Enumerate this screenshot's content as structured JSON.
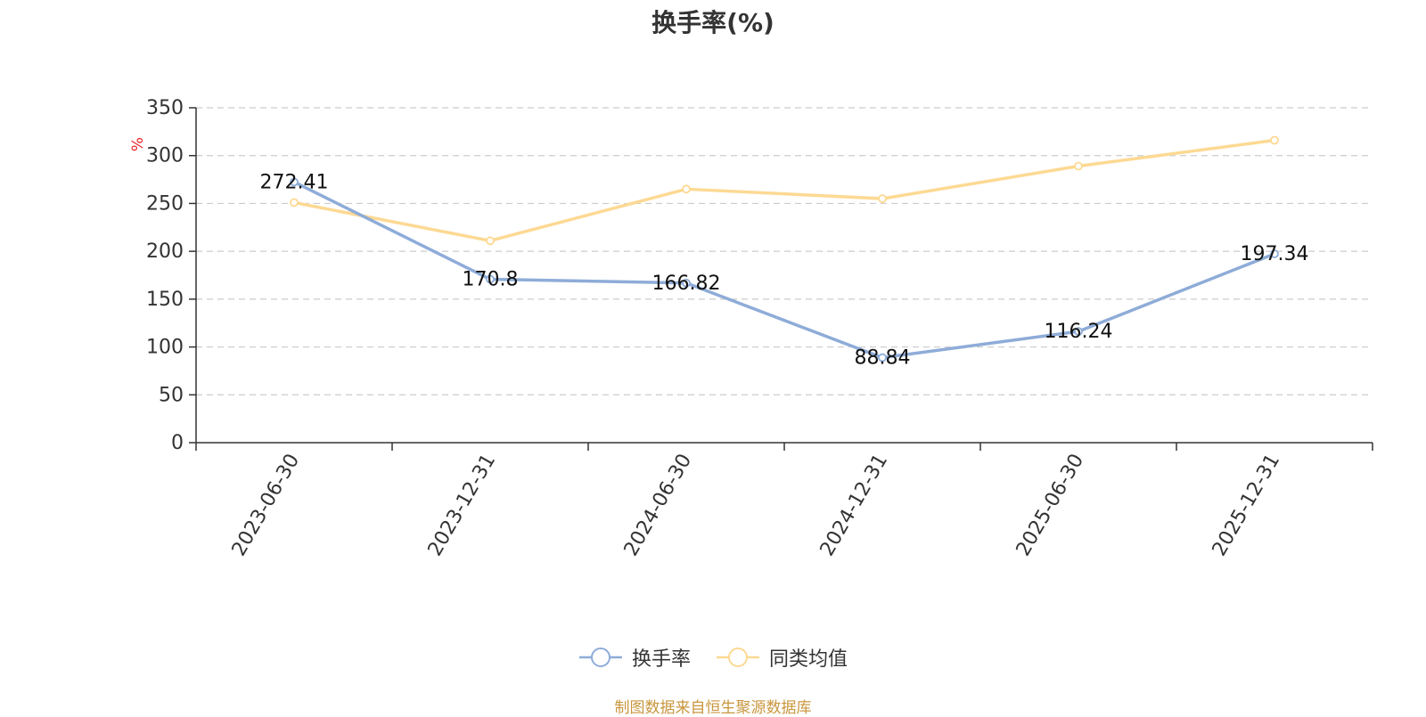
{
  "chart_data": {
    "type": "line",
    "title": "换手率(%)",
    "ylabel": "%",
    "xlabel": "",
    "categories": [
      "2023-06-30",
      "2023-12-31",
      "2024-06-30",
      "2024-12-31",
      "2025-06-30",
      "2025-12-31"
    ],
    "series": [
      {
        "name": "换手率",
        "color": "#8eacd8",
        "values": [
          272.41,
          170.8,
          166.82,
          88.84,
          116.24,
          197.34
        ],
        "labels": [
          "272.41",
          "170.8",
          "166.82",
          "88.84",
          "116.24",
          "197.34"
        ]
      },
      {
        "name": "同类均值",
        "color": "#fdd993",
        "values": [
          251,
          211,
          265,
          255,
          289,
          316
        ]
      }
    ],
    "ylim": [
      0,
      350
    ],
    "yticks": [
      0,
      50,
      100,
      150,
      200,
      250,
      300,
      350
    ],
    "grid": true,
    "legend_position": "bottom"
  },
  "footer": {
    "source": "制图数据来自恒生聚源数据库"
  }
}
